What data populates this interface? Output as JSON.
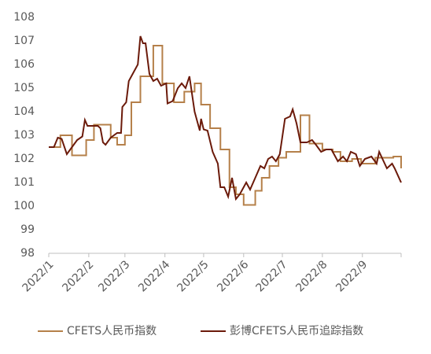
{
  "chart_data": {
    "type": "line",
    "xlim": [
      0,
      273
    ],
    "xticks": [
      {
        "value": 0,
        "label": "2022/1"
      },
      {
        "value": 31,
        "label": "2022/2"
      },
      {
        "value": 59,
        "label": "2022/3"
      },
      {
        "value": 90,
        "label": "2022/4"
      },
      {
        "value": 120,
        "label": "2022/5"
      },
      {
        "value": 151,
        "label": "2022/6"
      },
      {
        "value": 181,
        "label": "2022/7"
      },
      {
        "value": 212,
        "label": "2022/8"
      },
      {
        "value": 243,
        "label": "2022/9"
      },
      {
        "value": 273,
        "label": ""
      }
    ],
    "ylim": [
      98,
      108
    ],
    "yticks": [
      98,
      99,
      100,
      101,
      102,
      103,
      104,
      105,
      106,
      107,
      108
    ],
    "grid": false,
    "legend": "bottom",
    "series": [
      {
        "name": "CFETS人民币指数",
        "color": "#b5804a",
        "step": "post",
        "x": [
          0,
          9,
          18,
          29,
          35,
          48,
          53,
          59,
          64,
          71,
          81,
          88,
          97,
          105,
          113,
          118,
          125,
          133,
          140,
          145,
          151,
          160,
          165,
          171,
          178,
          184,
          195,
          202,
          212,
          220,
          226,
          235,
          242,
          253,
          267,
          273
        ],
        "values": [
          102.5,
          103.0,
          102.15,
          102.8,
          103.45,
          102.9,
          102.6,
          103.0,
          104.4,
          105.5,
          106.8,
          105.2,
          104.4,
          104.85,
          105.2,
          104.3,
          103.3,
          102.4,
          100.8,
          100.5,
          100.05,
          100.65,
          101.2,
          101.7,
          102.05,
          102.3,
          103.85,
          102.65,
          102.4,
          102.3,
          101.9,
          102.0,
          101.8,
          102.05,
          102.1,
          101.6
        ]
      },
      {
        "name": "彭博CFETS人民币追踪指数",
        "color": "#6b1a0a",
        "x": [
          0,
          4,
          7,
          10,
          14,
          18,
          22,
          26,
          28,
          30,
          38,
          40,
          42,
          44,
          48,
          53,
          56,
          57,
          60,
          62,
          65,
          69,
          71,
          73,
          75,
          78,
          81,
          84,
          87,
          91,
          92,
          96,
          100,
          103,
          106,
          109,
          113,
          117,
          118,
          120,
          123,
          127,
          131,
          133,
          136,
          139,
          142,
          145,
          148,
          153,
          156,
          160,
          164,
          167,
          170,
          173,
          176,
          179,
          183,
          187,
          189,
          192,
          195,
          200,
          204,
          207,
          211,
          215,
          219,
          224,
          228,
          231,
          234,
          238,
          241,
          245,
          250,
          254,
          256,
          262,
          266,
          268,
          273
        ],
        "values": [
          102.5,
          102.5,
          102.9,
          102.85,
          102.2,
          102.5,
          102.8,
          102.95,
          103.65,
          103.4,
          103.4,
          103.3,
          102.7,
          102.6,
          102.9,
          103.1,
          103.1,
          104.2,
          104.4,
          105.3,
          105.6,
          106.0,
          107.2,
          106.9,
          106.9,
          105.6,
          105.3,
          105.4,
          105.1,
          105.2,
          104.35,
          104.45,
          105.0,
          105.2,
          105.0,
          105.5,
          104.0,
          103.2,
          103.7,
          103.25,
          103.2,
          102.3,
          101.8,
          100.8,
          100.8,
          100.4,
          101.2,
          100.3,
          100.5,
          101.0,
          100.7,
          101.2,
          101.7,
          101.6,
          102.0,
          102.1,
          101.9,
          102.2,
          103.7,
          103.8,
          104.1,
          103.5,
          102.7,
          102.7,
          102.8,
          102.6,
          102.3,
          102.4,
          102.4,
          101.9,
          102.1,
          101.9,
          102.3,
          102.2,
          101.7,
          102.0,
          102.1,
          101.8,
          102.3,
          101.6,
          101.8,
          101.6,
          101.0
        ]
      }
    ]
  }
}
